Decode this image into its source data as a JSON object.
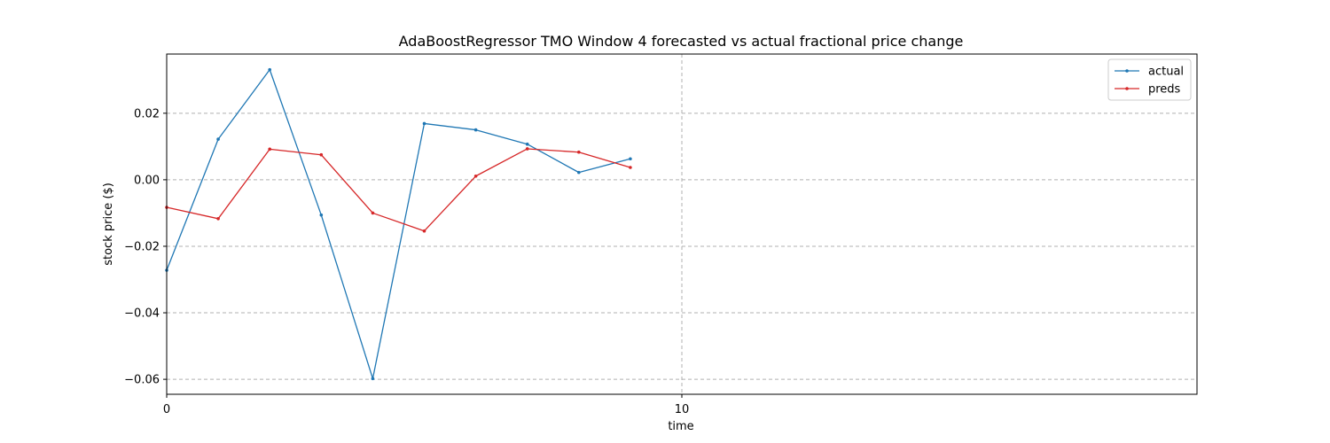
{
  "chart_data": {
    "type": "line",
    "title": "AdaBoostRegressor TMO Window 4 forecasted vs actual fractional price change",
    "xlabel": "time",
    "ylabel": "stock price ($)",
    "xlim": [
      0,
      20
    ],
    "ylim": [
      -0.0645,
      0.0378
    ],
    "x_ticks": [
      0,
      10
    ],
    "x_tick_labels": [
      "0",
      "10"
    ],
    "y_ticks": [
      0.02,
      0.0,
      -0.02,
      -0.04,
      -0.06
    ],
    "y_tick_labels": [
      "0.02",
      "0.00",
      "−0.02",
      "−0.04",
      "−0.06"
    ],
    "grid": true,
    "legend_position": "top-right",
    "x": [
      0,
      1,
      2,
      3,
      4,
      5,
      6,
      7,
      8,
      9
    ],
    "series": [
      {
        "name": "actual",
        "color": "#1f77b4",
        "values": [
          -0.0272,
          0.0122,
          0.0331,
          -0.0106,
          -0.0598,
          0.0169,
          0.015,
          0.0107,
          0.0022,
          0.0063
        ]
      },
      {
        "name": "preds",
        "color": "#d62728",
        "values": [
          -0.0083,
          -0.0117,
          0.0092,
          0.0075,
          -0.01,
          -0.0154,
          0.0011,
          0.0093,
          0.0083,
          0.0037
        ]
      }
    ]
  }
}
